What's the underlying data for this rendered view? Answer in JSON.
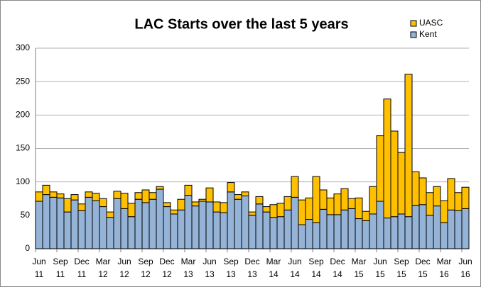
{
  "chart_data": {
    "type": "stacked_bar",
    "title": "LAC Starts over the last 5 years",
    "categories": [
      "Jun 11",
      null,
      null,
      "Sep 11",
      null,
      null,
      "Dec 11",
      null,
      null,
      "Mar 12",
      null,
      null,
      "Jun 12",
      null,
      null,
      "Sep 12",
      null,
      null,
      "Dec 12",
      null,
      null,
      "Mar 13",
      null,
      null,
      "Jun 13",
      null,
      null,
      "Sep 13",
      null,
      null,
      "Dec 13",
      null,
      null,
      "Mar 14",
      null,
      null,
      "Jun 14",
      null,
      null,
      "Sep 14",
      null,
      null,
      "Dec 14",
      null,
      null,
      "Mar 15",
      null,
      null,
      "Jun 15",
      null,
      null,
      "Sep 15",
      null,
      null,
      "Dec 15",
      null,
      null,
      "Mar 16",
      null,
      null,
      "Jun 16"
    ],
    "series": [
      {
        "name": "Kent",
        "color": "#95b3d7",
        "values": [
          71,
          81,
          77,
          76,
          55,
          73,
          57,
          77,
          72,
          63,
          47,
          75,
          60,
          48,
          74,
          69,
          74,
          89,
          63,
          52,
          58,
          80,
          64,
          71,
          70,
          55,
          54,
          85,
          74,
          79,
          50,
          67,
          55,
          47,
          48,
          58,
          77,
          36,
          44,
          39,
          59,
          51,
          51,
          58,
          60,
          45,
          42,
          52,
          71,
          46,
          48,
          52,
          48,
          65,
          66,
          50,
          64,
          39,
          58,
          57,
          60
        ]
      },
      {
        "name": "UASC",
        "color": "#ffc000",
        "values": [
          14,
          14,
          8,
          6,
          20,
          8,
          10,
          8,
          11,
          12,
          8,
          11,
          23,
          20,
          10,
          19,
          10,
          4,
          6,
          6,
          16,
          15,
          6,
          3,
          21,
          15,
          15,
          14,
          7,
          6,
          5,
          11,
          8,
          19,
          20,
          20,
          31,
          37,
          32,
          69,
          29,
          25,
          31,
          32,
          15,
          31,
          14,
          41,
          98,
          178,
          128,
          92,
          213,
          50,
          40,
          34,
          29,
          33,
          47,
          27,
          32
        ]
      }
    ],
    "ylim": [
      0,
      300
    ],
    "yticks": [
      0,
      50,
      100,
      150,
      200,
      250,
      300
    ],
    "grid": true,
    "legend": "top-right"
  }
}
